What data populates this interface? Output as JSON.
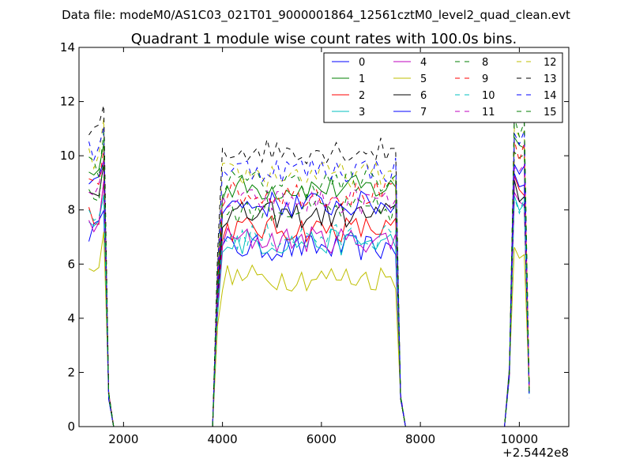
{
  "figure": {
    "suptitle": "Data file: modeM0/AS1C03_021T01_9000001864_12561cztM0_level2_quad_clean.evt",
    "title": "Quadrant 1 module wise count rates with 100.0s bins.",
    "x_offset_label": "+2.5442e8"
  },
  "chart_data": {
    "type": "line",
    "title": "Quadrant 1 module wise count rates with 100.0s bins.",
    "xlabel": "",
    "ylabel": "",
    "xlim": [
      1100,
      11000
    ],
    "ylim": [
      0,
      14
    ],
    "x_offset": 254420000,
    "x_ticks": [
      2000,
      4000,
      6000,
      8000,
      10000
    ],
    "x_tick_labels": [
      "2000",
      "4000",
      "6000",
      "8000",
      "10000"
    ],
    "y_ticks": [
      0,
      2,
      4,
      6,
      8,
      10,
      12,
      14
    ],
    "y_tick_labels": [
      "0",
      "2",
      "4",
      "6",
      "8",
      "10",
      "12",
      "14"
    ],
    "grid": false,
    "legend": {
      "placement": "top-right",
      "columns": 4
    },
    "segments": [
      {
        "x_start": 1300,
        "x_end": 1600,
        "edge_points": [
          1700,
          1800
        ]
      },
      {
        "x_start": 3900,
        "x_end": 7500,
        "edge_points": [
          3800,
          7600,
          7700
        ]
      },
      {
        "x_start": 9900,
        "x_end": 10200,
        "edge_points": [
          9700,
          9800
        ]
      }
    ],
    "gaps": [
      [
        1800,
        3800
      ],
      [
        7700,
        9700
      ]
    ],
    "series": [
      {
        "name": "0",
        "color": "#0000ff",
        "style": "solid",
        "level": 6.6,
        "level_end": 9.8
      },
      {
        "name": "1",
        "color": "#007f00",
        "style": "solid",
        "level": 8.8,
        "level_end": 10.8
      },
      {
        "name": "2",
        "color": "#ff0000",
        "style": "solid",
        "level": 7.3,
        "level_end": 9.0
      },
      {
        "name": "3",
        "color": "#00bfbf",
        "style": "solid",
        "level": 6.8,
        "level_end": 8.3
      },
      {
        "name": "4",
        "color": "#bf00bf",
        "style": "solid",
        "level": 6.9,
        "level_end": 8.7
      },
      {
        "name": "5",
        "color": "#bfbf00",
        "style": "solid",
        "level": 5.5,
        "level_end": 6.9
      },
      {
        "name": "6",
        "color": "#000000",
        "style": "solid",
        "level": 7.8,
        "level_end": 9.0
      },
      {
        "name": "7",
        "color": "#0000ff",
        "style": "solid",
        "level": 8.2,
        "level_end": 9.5
      },
      {
        "name": "8",
        "color": "#007f00",
        "style": "dashed",
        "level": 8.0,
        "level_end": 10.2
      },
      {
        "name": "9",
        "color": "#ff0000",
        "style": "dashed",
        "level": 8.6,
        "level_end": 10.5
      },
      {
        "name": "10",
        "color": "#00bfbf",
        "style": "dashed",
        "level": 7.0,
        "level_end": 8.5
      },
      {
        "name": "11",
        "color": "#bf00bf",
        "style": "dashed",
        "level": 8.3,
        "level_end": 9.8
      },
      {
        "name": "12",
        "color": "#bfbf00",
        "style": "dashed",
        "level": 9.3,
        "level_end": 11.2
      },
      {
        "name": "13",
        "color": "#000000",
        "style": "dashed",
        "level": 10.2,
        "level_end": 11.8
      },
      {
        "name": "14",
        "color": "#0000ff",
        "style": "dashed",
        "level": 9.5,
        "level_end": 11.0
      },
      {
        "name": "15",
        "color": "#007f00",
        "style": "dashed",
        "level": 9.0,
        "level_end": 11.5
      }
    ]
  }
}
